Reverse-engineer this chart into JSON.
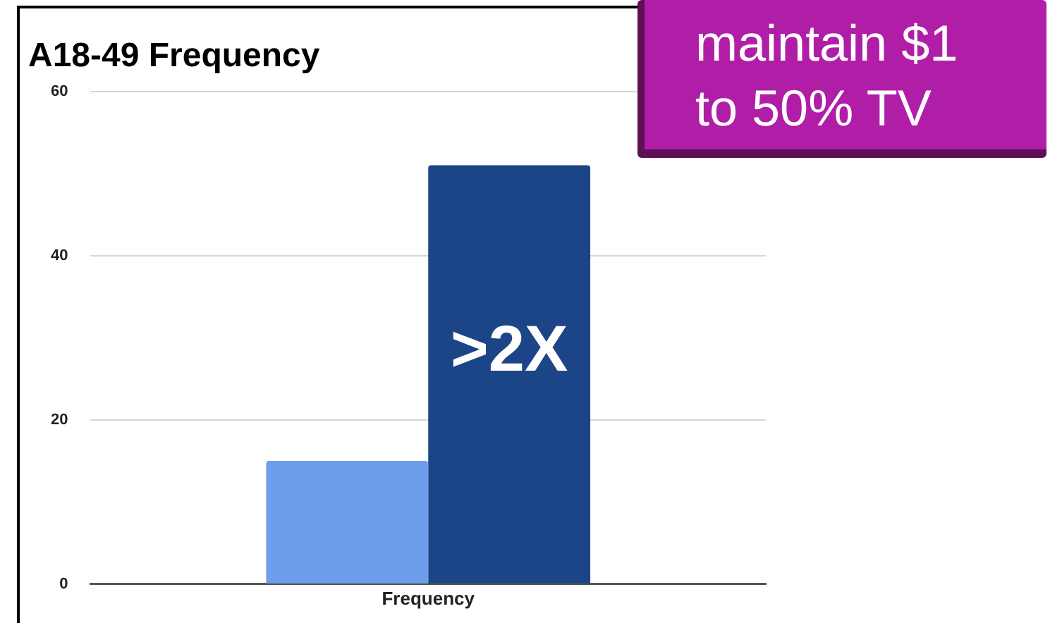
{
  "chart_data": {
    "type": "bar",
    "title": "A18-49 Frequency",
    "categories": [
      "Frequency"
    ],
    "series": [
      {
        "color": "#6d9eeb",
        "values": [
          15
        ]
      },
      {
        "color": "#1c4587",
        "values": [
          51
        ]
      }
    ],
    "ylim": [
      0,
      60
    ],
    "yticks": [
      0,
      20,
      40,
      60
    ],
    "grid": "y",
    "legend": false,
    "annotations": [
      ">2X",
      "maintain $1",
      "to 50% TV"
    ]
  }
}
